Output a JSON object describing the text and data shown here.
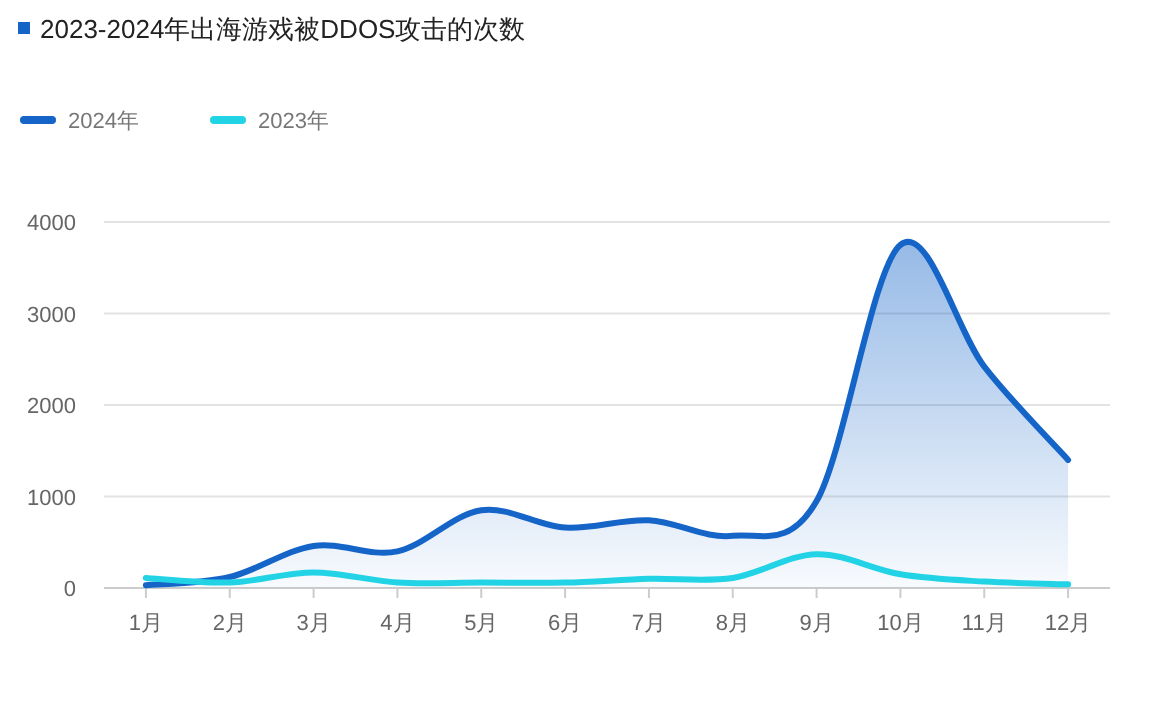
{
  "chart_data": {
    "type": "line",
    "title": "2023-2024年出海游戏被DDOS攻击的次数",
    "categories": [
      "1月",
      "2月",
      "3月",
      "4月",
      "5月",
      "6月",
      "7月",
      "8月",
      "9月",
      "10月",
      "11月",
      "12月"
    ],
    "series": [
      {
        "name": "2024年",
        "color": "#1565c8",
        "type": "area",
        "values": [
          30,
          120,
          460,
          400,
          850,
          660,
          740,
          570,
          950,
          3750,
          2420,
          1400
        ]
      },
      {
        "name": "2023年",
        "color": "#22d3e6",
        "values": [
          110,
          60,
          170,
          60,
          60,
          60,
          100,
          110,
          370,
          150,
          70,
          40
        ]
      }
    ],
    "ylim": [
      0,
      4000
    ],
    "yticks": [
      0,
      1000,
      2000,
      3000,
      4000
    ],
    "grid": "y",
    "legend": "top left",
    "marker": "none",
    "line_style": "solid"
  }
}
